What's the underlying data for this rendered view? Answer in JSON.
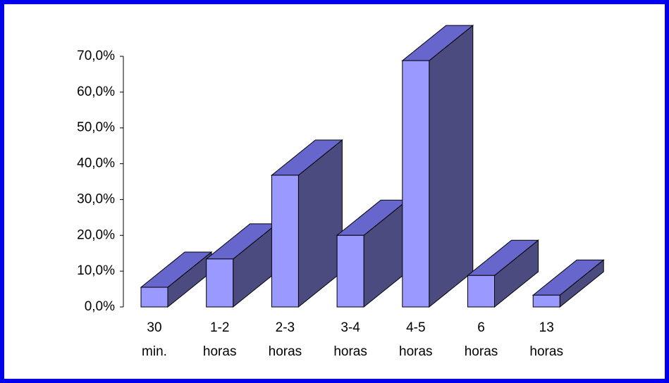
{
  "chart_data": {
    "type": "bar3d",
    "categories": [
      "30 min.",
      "1-2 horas",
      "2-3 horas",
      "3-4 horas",
      "4-5 horas",
      "6 horas",
      "13 horas"
    ],
    "values": [
      5.5,
      13.4,
      36.8,
      20.0,
      68.8,
      8.8,
      3.3
    ],
    "color": "#9999ff",
    "top_color": "#6666cc",
    "side_color": "#4b4b80",
    "ylim": [
      0,
      70
    ],
    "yticks": [
      {
        "value": 0,
        "label": "0,0%"
      },
      {
        "value": 10,
        "label": "10,0%"
      },
      {
        "value": 20,
        "label": "20,0%"
      },
      {
        "value": 30,
        "label": "30,0%"
      },
      {
        "value": 40,
        "label": "40,0%"
      },
      {
        "value": 50,
        "label": "50,0%"
      },
      {
        "value": 60,
        "label": "60,0%"
      },
      {
        "value": 70,
        "label": "70,0%"
      }
    ]
  }
}
